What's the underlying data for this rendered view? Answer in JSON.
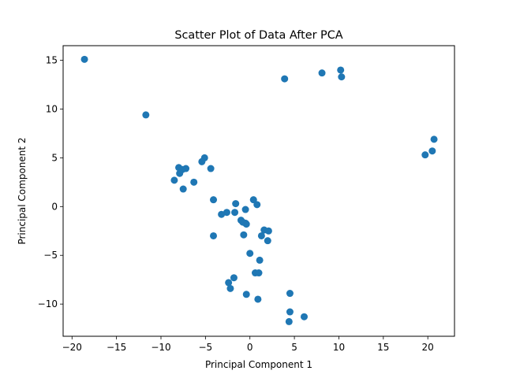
{
  "chart_data": {
    "type": "scatter",
    "title": "Scatter Plot of Data After PCA",
    "xlabel": "Principal Component 1",
    "ylabel": "Principal Component 2",
    "xlim": [
      -21,
      23
    ],
    "ylim": [
      -13.3,
      16.5
    ],
    "xticks": [
      -20,
      -15,
      -10,
      -5,
      0,
      5,
      10,
      15,
      20
    ],
    "yticks": [
      -10,
      -5,
      0,
      5,
      10,
      15
    ],
    "grid": false,
    "legend": "none",
    "marker_color": "#1f77b4",
    "points": [
      {
        "x": -18.6,
        "y": 15.1
      },
      {
        "x": -11.7,
        "y": 9.4
      },
      {
        "x": 3.9,
        "y": 13.1
      },
      {
        "x": 8.1,
        "y": 13.7
      },
      {
        "x": 10.2,
        "y": 14.0
      },
      {
        "x": 10.3,
        "y": 13.3
      },
      {
        "x": 20.7,
        "y": 6.9
      },
      {
        "x": 20.5,
        "y": 5.7
      },
      {
        "x": 19.7,
        "y": 5.3
      },
      {
        "x": -5.1,
        "y": 5.0
      },
      {
        "x": -5.4,
        "y": 4.6
      },
      {
        "x": -4.4,
        "y": 3.9
      },
      {
        "x": -8.0,
        "y": 4.0
      },
      {
        "x": -7.2,
        "y": 3.9
      },
      {
        "x": -7.6,
        "y": 3.8
      },
      {
        "x": -7.9,
        "y": 3.4
      },
      {
        "x": -8.5,
        "y": 2.7
      },
      {
        "x": -6.3,
        "y": 2.5
      },
      {
        "x": -7.5,
        "y": 1.8
      },
      {
        "x": -4.1,
        "y": 0.7
      },
      {
        "x": 0.4,
        "y": 0.7
      },
      {
        "x": -1.6,
        "y": 0.3
      },
      {
        "x": 0.8,
        "y": 0.2
      },
      {
        "x": -0.5,
        "y": -0.3
      },
      {
        "x": -1.7,
        "y": -0.6
      },
      {
        "x": -2.6,
        "y": -0.6
      },
      {
        "x": -3.2,
        "y": -0.8
      },
      {
        "x": -1.0,
        "y": -1.4
      },
      {
        "x": -0.8,
        "y": -1.6
      },
      {
        "x": -0.5,
        "y": -1.7
      },
      {
        "x": -0.4,
        "y": -1.8
      },
      {
        "x": 1.6,
        "y": -2.4
      },
      {
        "x": 2.1,
        "y": -2.5
      },
      {
        "x": -4.1,
        "y": -3.0
      },
      {
        "x": -0.7,
        "y": -2.9
      },
      {
        "x": 1.3,
        "y": -3.0
      },
      {
        "x": 2.0,
        "y": -3.5
      },
      {
        "x": 0.0,
        "y": -4.8
      },
      {
        "x": 1.1,
        "y": -5.5
      },
      {
        "x": 0.6,
        "y": -6.8
      },
      {
        "x": 1.0,
        "y": -6.8
      },
      {
        "x": -1.8,
        "y": -7.3
      },
      {
        "x": -2.4,
        "y": -7.8
      },
      {
        "x": -2.2,
        "y": -8.4
      },
      {
        "x": 4.5,
        "y": -8.9
      },
      {
        "x": -0.4,
        "y": -9.0
      },
      {
        "x": 0.9,
        "y": -9.5
      },
      {
        "x": 4.5,
        "y": -10.8
      },
      {
        "x": 6.1,
        "y": -11.3
      },
      {
        "x": 4.4,
        "y": -11.8
      }
    ]
  }
}
